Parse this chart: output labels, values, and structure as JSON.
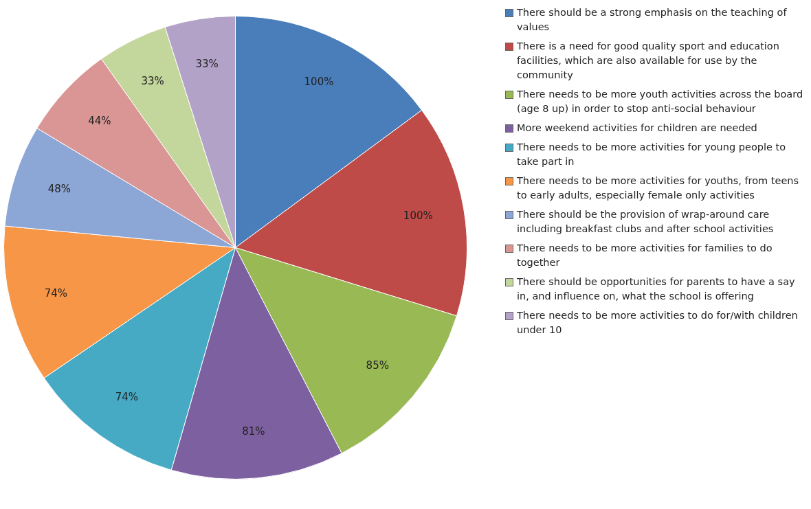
{
  "chart_data": {
    "type": "pie",
    "categories": [
      "There should be a strong emphasis on the teaching of values",
      "There is a need for good quality sport and education facilities, which are also available for use by the community",
      "There needs to be more youth activities across the board (age 8 up) in order to stop anti-social behaviour",
      "More weekend activities for children are needed",
      "There needs to be more activities for young people to take part in",
      "There needs to be more activities for youths, from teens to early adults, especially female only activities",
      "There should be the provision of wrap-around care including breakfast clubs and after school activities",
      "There needs to be more activities for families to do together",
      "There should be opportunities for parents to have a say in, and influence on, what the school is offering",
      "There needs to be more activities to do for/with children under 10"
    ],
    "values": [
      100,
      100,
      85,
      81,
      74,
      74,
      48,
      44,
      33,
      33
    ],
    "value_labels": [
      "100%",
      "100%",
      "85%",
      "81%",
      "74%",
      "74%",
      "48%",
      "44%",
      "33%",
      "33%"
    ],
    "colors": [
      "#4a7ebb",
      "#be4b48",
      "#98b954",
      "#7d60a0",
      "#46aac5",
      "#f79646",
      "#8ca6d5",
      "#d99694",
      "#c3d69b",
      "#b3a2c7"
    ],
    "legend": "right"
  }
}
